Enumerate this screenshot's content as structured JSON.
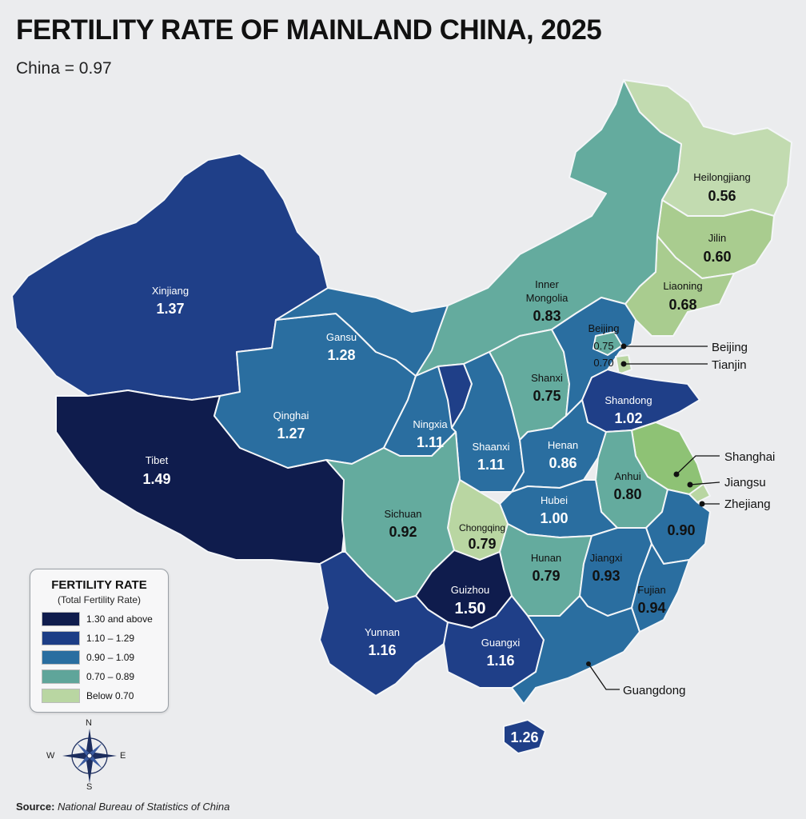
{
  "title": "FERTILITY RATE OF MAINLAND CHINA, 2025",
  "subtitle": "China = 0.97",
  "legend": {
    "title": "FERTILITY RATE",
    "subtitle": "(Total Fertility Rate)",
    "items": [
      {
        "label": "1.30 and above",
        "color": "#0f1c4d"
      },
      {
        "label": "1.10 – 1.29",
        "color": "#1c3d86"
      },
      {
        "label": "0.90 – 1.09",
        "color": "#2a6ea0"
      },
      {
        "label": "0.70 – 0.89",
        "color": "#5fa59a"
      },
      {
        "label": "Below 0.70",
        "color": "#b9d6a2"
      }
    ]
  },
  "provinces": {
    "xinjiang": {
      "name": "Xinjiang",
      "value": "1.37"
    },
    "tibet": {
      "name": "Tibet",
      "value": "1.49"
    },
    "qinghai": {
      "name": "Qinghai",
      "value": "1.27"
    },
    "gansu": {
      "name": "Gansu",
      "value": "1.28"
    },
    "inner_mongolia": {
      "name1": "Inner",
      "name2": "Mongolia",
      "value": "0.83"
    },
    "heilongjiang": {
      "name": "Heilongjiang",
      "value": "0.56"
    },
    "jilin": {
      "name": "Jilin",
      "value": "0.60"
    },
    "liaoning": {
      "name": "Liaoning",
      "value": "0.68"
    },
    "beijing": {
      "name": "Beijing",
      "value": "0.75"
    },
    "tianjin": {
      "value": "0.70"
    },
    "shanxi": {
      "name": "Shanxi",
      "value": "0.75"
    },
    "shandong": {
      "name": "Shandong",
      "value": "1.02"
    },
    "ningxia": {
      "name": "Ningxia",
      "value": "1.11"
    },
    "shaanxi": {
      "name": "Shaanxi",
      "value": "1.11"
    },
    "henan": {
      "name": "Henan",
      "value": "0.86"
    },
    "anhui": {
      "name": "Anhui",
      "value": "0.80"
    },
    "sichuan": {
      "name": "Sichuan",
      "value": "0.92"
    },
    "chongqing": {
      "name": "Chongqing",
      "value": "0.79"
    },
    "hubei": {
      "name": "Hubei",
      "value": "1.00"
    },
    "zhejiang": {
      "value": "0.90"
    },
    "hunan": {
      "name": "Hunan",
      "value": "0.79"
    },
    "jiangxi": {
      "name": "Jiangxi",
      "value": "0.93"
    },
    "fujian": {
      "name": "Fujian",
      "value": "0.94"
    },
    "guizhou": {
      "name": "Guizhou",
      "value": "1.50"
    },
    "yunnan": {
      "name": "Yunnan",
      "value": "1.16"
    },
    "guangxi": {
      "name": "Guangxi",
      "value": "1.16"
    },
    "hainan": {
      "value": "1.26"
    }
  },
  "callouts": {
    "beijing": "Beijing",
    "tianjin": "Tianjin",
    "shanghai": "Shanghai",
    "jiangsu": "Jiangsu",
    "zhejiang": "Zhejiang",
    "guangdong": "Guangdong"
  },
  "compass": {
    "n": "N",
    "s": "S",
    "e": "E",
    "w": "W",
    "icon": "compass-rose-icon"
  },
  "source": {
    "label": "Source:",
    "text": "National Bureau of Statistics of China"
  }
}
